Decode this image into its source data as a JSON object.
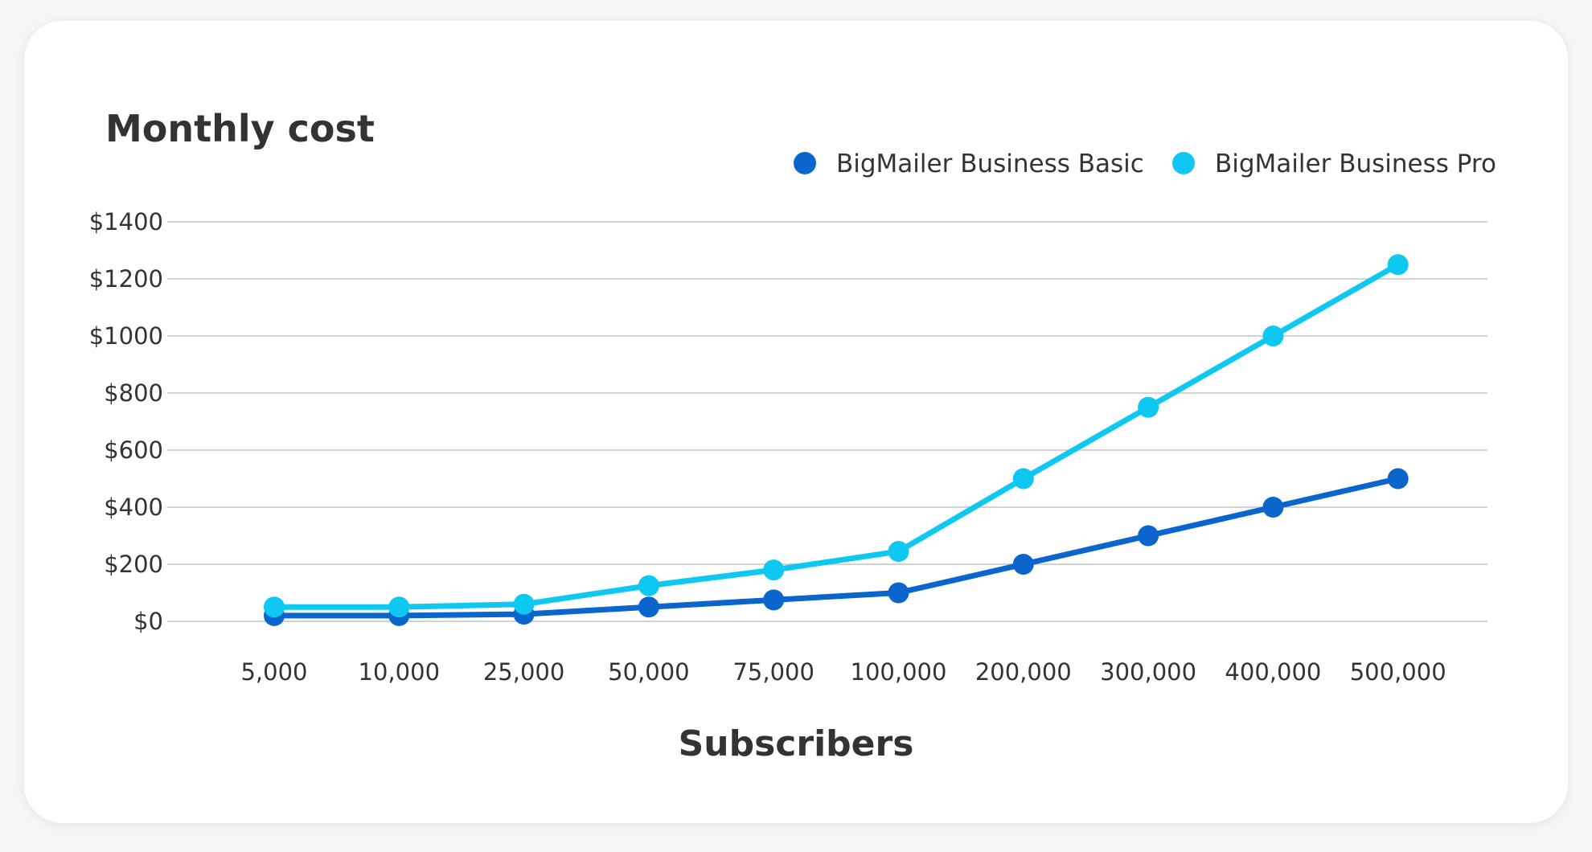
{
  "chart_data": {
    "type": "line",
    "title": "Monthly cost",
    "xlabel": "Subscribers",
    "ylabel": "",
    "categories": [
      "5,000",
      "10,000",
      "25,000",
      "50,000",
      "75,000",
      "100,000",
      "200,000",
      "300,000",
      "400,000",
      "500,000"
    ],
    "y_ticks": [
      "$0",
      "$200",
      "$400",
      "$600",
      "$800",
      "$1000",
      "$1200",
      "$1400"
    ],
    "ylim": [
      0,
      1400
    ],
    "grid": true,
    "legend_position": "top-right",
    "series": [
      {
        "name": "BigMailer Business Basic",
        "color": "#0a66cc",
        "values": [
          20,
          20,
          25,
          50,
          75,
          100,
          200,
          300,
          400,
          500
        ]
      },
      {
        "name": "BigMailer Business Pro",
        "color": "#0ec8f2",
        "values": [
          50,
          50,
          60,
          125,
          180,
          245,
          500,
          750,
          1000,
          1250
        ]
      }
    ]
  }
}
